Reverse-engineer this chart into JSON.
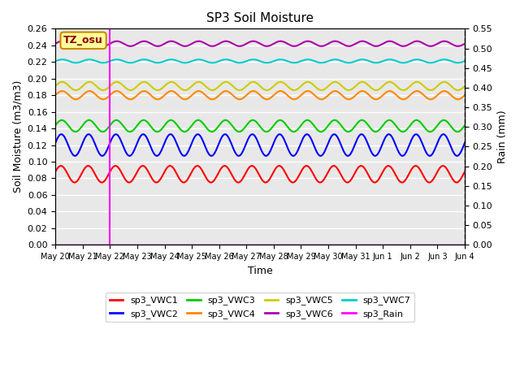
{
  "title": "SP3 Soil Moisture",
  "xlabel": "Time",
  "ylabel_left": "Soil Moisture (m3/m3)",
  "ylabel_right": "Rain (mm)",
  "annotation": "TZ_osu",
  "n_days": 15,
  "tick_labels": [
    "May 20",
    "May 21",
    "May 22",
    "May 23",
    "May 24",
    "May 25",
    "May 26",
    "May 27",
    "May 28",
    "May 29",
    "May 30",
    "May 31",
    "Jun 1",
    "Jun 2",
    "Jun 3",
    "Jun 4"
  ],
  "ylim_left": [
    0.0,
    0.26
  ],
  "ylim_right": [
    0.0,
    0.55
  ],
  "yticks_left": [
    0.0,
    0.02,
    0.04,
    0.06,
    0.08,
    0.1,
    0.12,
    0.14,
    0.16,
    0.18,
    0.2,
    0.22,
    0.24,
    0.26
  ],
  "yticks_right": [
    0.0,
    0.05,
    0.1,
    0.15,
    0.2,
    0.25,
    0.3,
    0.35,
    0.4,
    0.45,
    0.5,
    0.55
  ],
  "vline_x": 2,
  "vline_color": "#ff00ff",
  "series": {
    "sp3_VWC1": {
      "mean": 0.085,
      "amp": 0.01,
      "phase": 0.3,
      "color": "#ff0000",
      "lw": 1.5
    },
    "sp3_VWC2": {
      "mean": 0.12,
      "amp": 0.013,
      "phase": 0.2,
      "color": "#0000ff",
      "lw": 1.5
    },
    "sp3_VWC3": {
      "mean": 0.143,
      "amp": 0.007,
      "phase": 0.1,
      "color": "#00cc00",
      "lw": 1.5
    },
    "sp3_VWC4": {
      "mean": 0.18,
      "amp": 0.005,
      "phase": 0.0,
      "color": "#ff8800",
      "lw": 1.5
    },
    "sp3_VWC5": {
      "mean": 0.191,
      "amp": 0.005,
      "phase": 0.0,
      "color": "#cccc00",
      "lw": 1.5
    },
    "sp3_VWC6": {
      "mean": 0.242,
      "amp": 0.003,
      "phase": 0.0,
      "color": "#aa00aa",
      "lw": 1.5
    },
    "sp3_VWC7": {
      "mean": 0.221,
      "amp": 0.002,
      "phase": 0.0,
      "color": "#00cccc",
      "lw": 1.5
    }
  },
  "rain_color": "#ff00ff",
  "bg_color": "#e8e8e8",
  "grid_color": "#ffffff",
  "legend_items": [
    {
      "label": "sp3_VWC1",
      "color": "#ff0000"
    },
    {
      "label": "sp3_VWC2",
      "color": "#0000ff"
    },
    {
      "label": "sp3_VWC3",
      "color": "#00cc00"
    },
    {
      "label": "sp3_VWC4",
      "color": "#ff8800"
    },
    {
      "label": "sp3_VWC5",
      "color": "#cccc00"
    },
    {
      "label": "sp3_VWC6",
      "color": "#aa00aa"
    },
    {
      "label": "sp3_VWC7",
      "color": "#00cccc"
    },
    {
      "label": "sp3_Rain",
      "color": "#ff00ff"
    }
  ]
}
